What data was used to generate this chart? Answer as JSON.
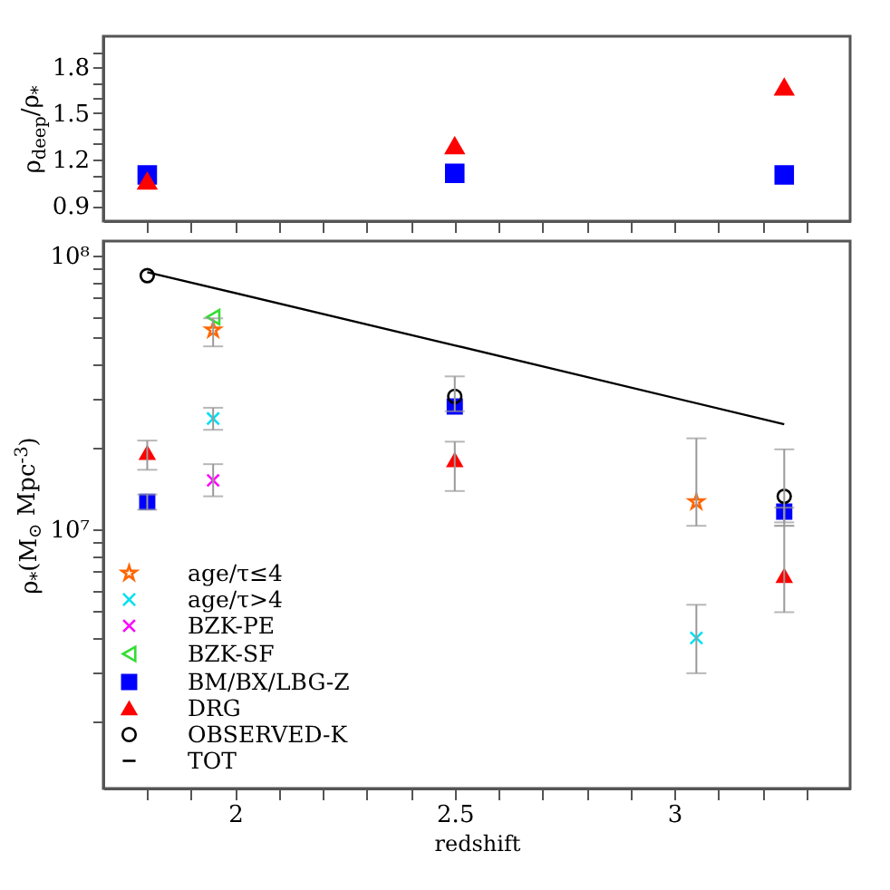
{
  "chart_data": [
    {
      "type": "scatter",
      "ylabel": "ρ$_{deep}$/ρ$_{*}$",
      "xlim": [
        1.7,
        3.4
      ],
      "xticks": [
        {
          "value": 1.8,
          "label": null
        },
        {
          "value": 1.9,
          "label": null
        },
        2,
        {
          "value": 2.1,
          "label": null
        },
        {
          "value": 2.2,
          "label": null
        },
        {
          "value": 2.3,
          "label": null
        },
        {
          "value": 2.4,
          "label": null
        },
        2.5,
        {
          "value": 2.6,
          "label": null
        },
        {
          "value": 2.7,
          "label": null
        },
        {
          "value": 2.8,
          "label": null
        },
        {
          "value": 2.9,
          "label": null
        },
        3,
        {
          "value": 3.1,
          "label": null
        },
        {
          "value": 3.2,
          "label": null
        },
        {
          "value": 3.3,
          "label": null
        }
      ],
      "ylim": [
        0.8,
        2.0
      ],
      "yticks": [
        0.9,
        {
          "value": 1.0,
          "label": null
        },
        {
          "value": 1.1,
          "label": null
        },
        1.2,
        {
          "value": 1.3,
          "label": null
        },
        {
          "value": 1.4,
          "label": null
        },
        1.5,
        {
          "value": 1.6,
          "label": null
        },
        {
          "value": 1.7,
          "label": null
        },
        1.8,
        {
          "value": 1.9,
          "label": null
        }
      ],
      "tick_labels": "y",
      "series": [
        {
          "color": "#0000ff",
          "marker": "square",
          "x": [
            1.8,
            2.5,
            3.25
          ],
          "values": [
            1.1,
            1.11,
            1.1
          ]
        },
        {
          "color": "#ff0000",
          "marker": "triangle",
          "x": [
            1.8,
            2.5,
            3.25
          ],
          "values": [
            1.06,
            1.29,
            1.67
          ]
        }
      ]
    },
    {
      "type": "scatter",
      "xlabel": "redshift",
      "ylabel": "ρ$_{*}$(M$_{⊙}$ Mpc$^{-3}$)",
      "log": true,
      "legend": "bottom left",
      "xlim": [
        1.7,
        3.4
      ],
      "xticks": [
        {
          "value": 1.8,
          "label": null
        },
        {
          "value": 1.9,
          "label": null
        },
        2,
        {
          "value": 2.1,
          "label": null
        },
        {
          "value": 2.2,
          "label": null
        },
        {
          "value": 2.3,
          "label": null
        },
        {
          "value": 2.4,
          "label": null
        },
        2.5,
        {
          "value": 2.6,
          "label": null
        },
        {
          "value": 2.7,
          "label": null
        },
        {
          "value": 2.8,
          "label": null
        },
        {
          "value": 2.9,
          "label": null
        },
        3,
        {
          "value": 3.1,
          "label": null
        },
        {
          "value": 3.2,
          "label": null
        },
        {
          "value": 3.3,
          "label": null
        }
      ],
      "ylim": [
        1130000,
        113000000
      ],
      "yticks": [
        {
          "value": 2000000,
          "label": null
        },
        {
          "value": 3000000,
          "label": null
        },
        {
          "value": 4000000,
          "label": null
        },
        {
          "value": 5000000,
          "label": null
        },
        {
          "value": 6000000,
          "label": null
        },
        {
          "value": 7000000,
          "label": null
        },
        {
          "value": 8000000,
          "label": null
        },
        {
          "value": 9000000,
          "label": null
        },
        {
          "value": 10000000,
          "label": "10⁷"
        },
        {
          "value": 20000000,
          "label": null
        },
        {
          "value": 30000000,
          "label": null
        },
        {
          "value": 40000000,
          "label": null
        },
        {
          "value": 50000000,
          "label": null
        },
        {
          "value": 60000000,
          "label": null
        },
        {
          "value": 70000000,
          "label": null
        },
        {
          "value": 80000000,
          "label": null
        },
        {
          "value": 90000000,
          "label": null
        },
        {
          "value": 100000000,
          "label": "10⁸"
        }
      ],
      "series": [
        {
          "name": "age/τ≤4",
          "color": "#ff6600",
          "marker": "star",
          "x": [
            1.95,
            3.05
          ],
          "values": [
            53500000,
            12600000
          ],
          "errors": [
            [
              46600000,
              59000000
            ],
            [
              10300000,
              21500000
            ]
          ]
        },
        {
          "name": "age/τ>4",
          "color": "#00e0f0",
          "marker": "cross",
          "x": [
            1.95,
            3.05
          ],
          "values": [
            25400000,
            4010000
          ],
          "errors": [
            [
              23100000,
              27800000
            ],
            [
              2980000,
              5300000
            ]
          ]
        },
        {
          "name": "BZK-PE",
          "color": "#ff00ff",
          "marker": "cross",
          "x": [
            1.95
          ],
          "values": [
            15100000
          ],
          "errors": [
            [
              13200000,
              17300000
            ]
          ]
        },
        {
          "name": "BZK-SF",
          "color": "#33dd33",
          "marker": "triangle-left",
          "x": [
            1.95
          ],
          "values": [
            59600000
          ]
        },
        {
          "name": "BM/BX/LBG-Z",
          "color": "#0000ff",
          "marker": "square",
          "x": [
            1.8,
            2.5,
            3.25
          ],
          "values": [
            12600000,
            28100000,
            11600000
          ],
          "errors": [
            [
              11800000,
              13400000
            ],
            null,
            [
              10600000,
              12000000
            ]
          ]
        },
        {
          "name": "DRG",
          "color": "#ff0000",
          "marker": "triangle",
          "x": [
            1.8,
            2.5,
            3.25
          ],
          "values": [
            19000000,
            17900000,
            6760000
          ],
          "errors": [
            [
              16500000,
              21100000
            ],
            [
              13800000,
              20900000
            ],
            [
              4980000,
              10300000
            ]
          ]
        },
        {
          "name": "OBSERVED-K",
          "color": "#000000",
          "marker": "circle",
          "x": [
            1.8,
            2.5,
            3.25
          ],
          "values": [
            84500000,
            30600000,
            13200000
          ],
          "errors": [
            null,
            [
              27000000,
              36200000
            ],
            [
              10300000,
              19600000
            ]
          ]
        },
        {
          "name": "TOT",
          "type": "line",
          "color": "#000000",
          "marker": "none",
          "x": [
            1.8,
            2.5,
            3.25
          ],
          "values": [
            87000000,
            47000000,
            24200000
          ]
        }
      ]
    }
  ]
}
